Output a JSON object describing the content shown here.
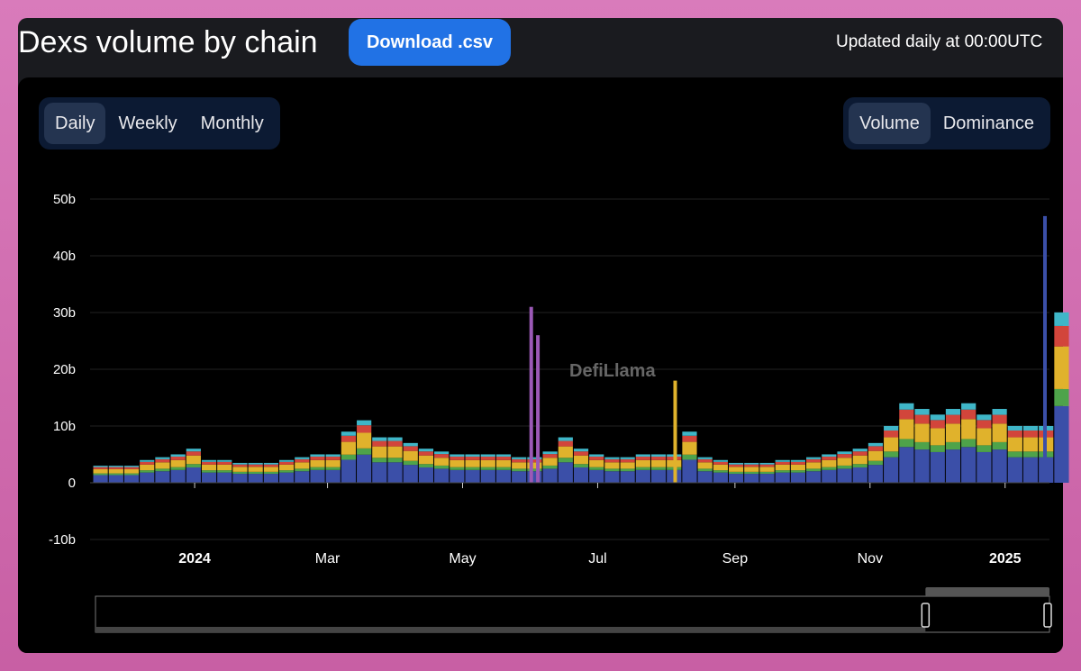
{
  "header": {
    "title": "Dexs volume by chain",
    "download_label": "Download .csv",
    "updated": "Updated daily at 00:00UTC"
  },
  "period_tabs": [
    {
      "label": "Daily",
      "active": true
    },
    {
      "label": "Weekly",
      "active": false
    },
    {
      "label": "Monthly",
      "active": false
    }
  ],
  "mode_tabs": [
    {
      "label": "Volume",
      "active": true
    },
    {
      "label": "Dominance",
      "active": false
    }
  ],
  "watermark": "DefiLlama",
  "chart_data": {
    "type": "bar",
    "stacked": true,
    "title": "",
    "xlabel": "",
    "ylabel": "",
    "ylim": [
      -10,
      50
    ],
    "y_unit": "b",
    "y_ticks": [
      "-10b",
      "0",
      "10b",
      "20b",
      "30b",
      "40b",
      "50b"
    ],
    "x_ticks": [
      {
        "label": "2024",
        "bold": true,
        "date": "2024-01-01"
      },
      {
        "label": "Mar",
        "date": "2024-03-01"
      },
      {
        "label": "May",
        "date": "2024-05-01"
      },
      {
        "label": "Jul",
        "date": "2024-07-01"
      },
      {
        "label": "Sep",
        "date": "2024-09-01"
      },
      {
        "label": "Nov",
        "date": "2024-11-01"
      },
      {
        "label": "2025",
        "bold": true,
        "date": "2025-01-01"
      }
    ],
    "xlim": [
      "2023-11-16",
      "2025-01-19"
    ],
    "grid": true,
    "x_weeks_start": "2023-11-16",
    "weekly_totals_b": [
      3,
      3,
      3,
      4,
      4.5,
      5,
      6,
      4,
      4,
      3.5,
      3.5,
      3.5,
      4,
      4.5,
      5,
      5,
      9,
      11,
      8,
      8,
      7,
      6,
      5.5,
      5,
      5,
      5,
      5,
      4.5,
      4.5,
      5.5,
      8,
      6,
      5,
      4.5,
      4.5,
      5,
      5,
      5,
      9,
      4.5,
      4,
      3.5,
      3.5,
      3.5,
      4,
      4,
      4.5,
      5,
      5.5,
      6,
      7,
      10,
      14,
      13,
      12,
      13,
      14,
      12,
      13,
      10,
      10,
      10,
      30
    ],
    "stack_colors": [
      "#3b4fa8",
      "#4ea34a",
      "#e0b22c",
      "#d2453b",
      "#3fb6c8"
    ],
    "stack_shares": [
      0.45,
      0.1,
      0.25,
      0.12,
      0.08
    ],
    "spikes": [
      {
        "date": "2024-06-01",
        "value_b": 31,
        "color": "#9b59b6"
      },
      {
        "date": "2024-06-04",
        "value_b": 26,
        "color": "#9b59b6"
      },
      {
        "date": "2024-08-05",
        "value_b": 18,
        "color": "#e0b22c"
      },
      {
        "date": "2025-01-19",
        "value_b": 47,
        "color": "#3b4fa8"
      }
    ]
  },
  "range_slider": {
    "start_fraction": 0.87,
    "end_fraction": 1.0
  }
}
